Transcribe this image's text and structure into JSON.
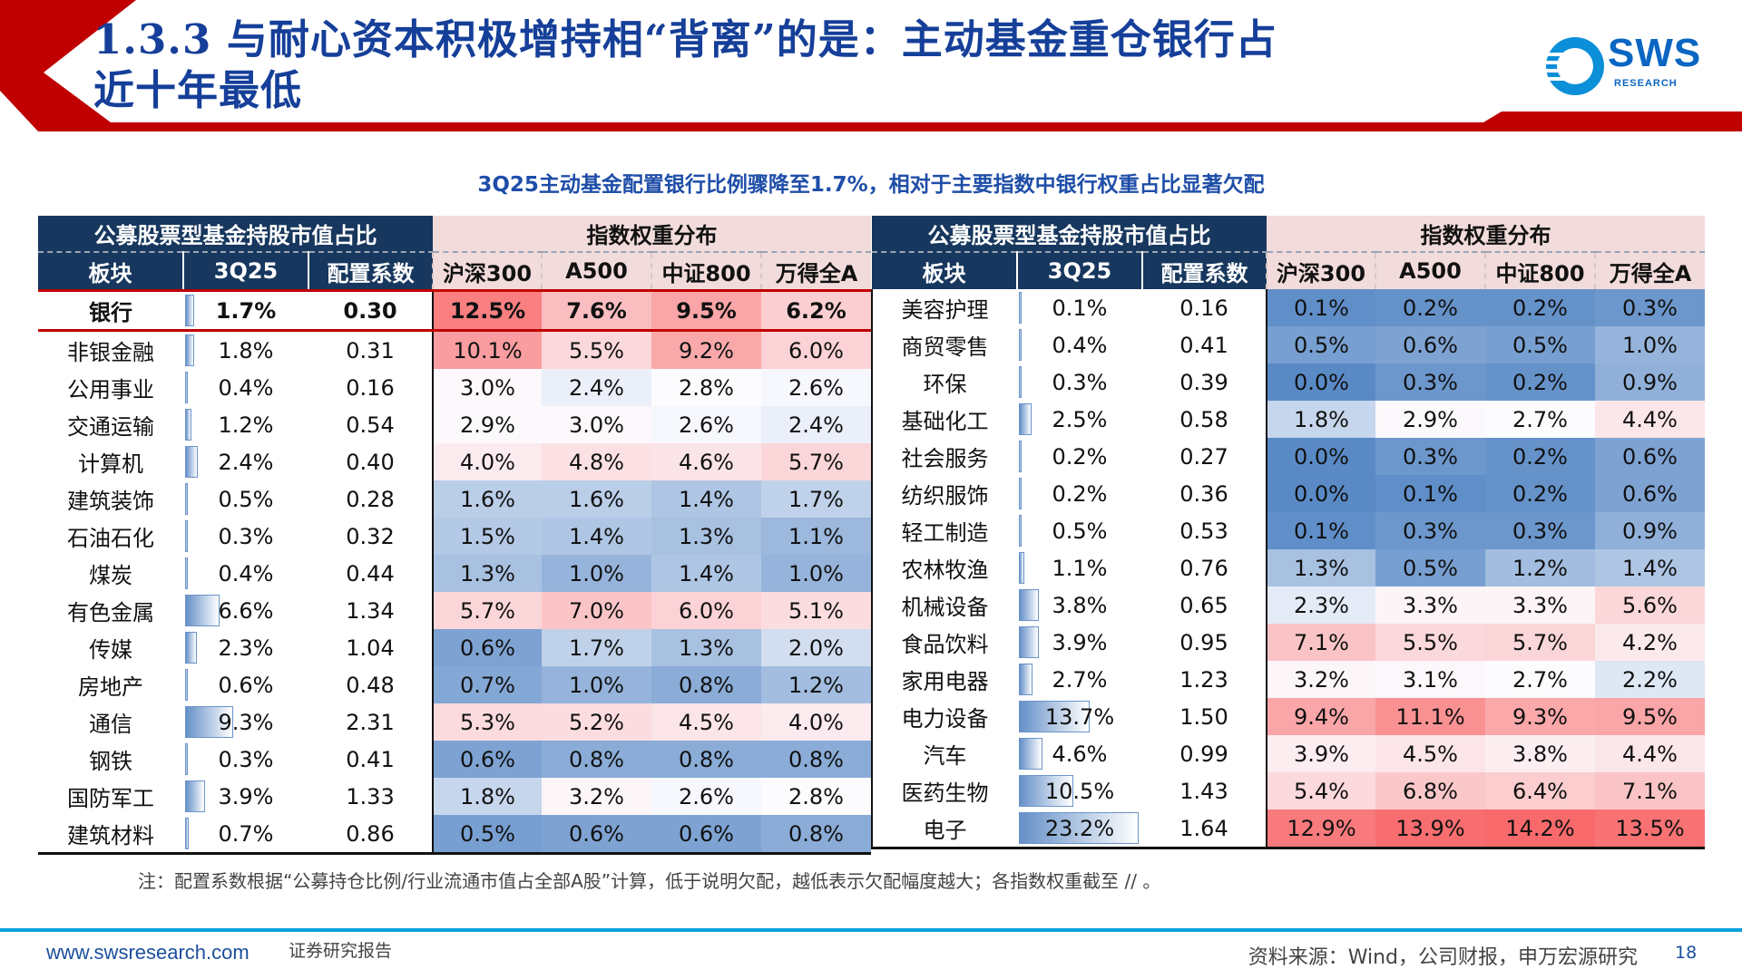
{
  "header": {
    "title_line1": "1.3.3 与耐心资本积极增持相“背离”的是：主动基金重仓银行占",
    "title_line2": "近十年最低",
    "logo_text": "SWS",
    "logo_sub": "RESEARCH"
  },
  "subtitle": "3Q25主动基金配置银行比例骤降至1.7%，相对于主要指数中银行权重占比显著欠配",
  "table": {
    "group_fund": "公募股票型基金持股市值占比",
    "group_index": "指数权重分布",
    "columns": [
      "板块",
      "3Q25",
      "配置系数",
      "沪深300",
      "A500",
      "中证800",
      "万得全A"
    ],
    "left_rows": [
      {
        "sector": "银行",
        "q": "1.7%",
        "coef": "0.30",
        "idx": [
          "12.5%",
          "7.6%",
          "9.5%",
          "6.2%"
        ]
      },
      {
        "sector": "非银金融",
        "q": "1.8%",
        "coef": "0.31",
        "idx": [
          "10.1%",
          "5.5%",
          "9.2%",
          "6.0%"
        ]
      },
      {
        "sector": "公用事业",
        "q": "0.4%",
        "coef": "0.16",
        "idx": [
          "3.0%",
          "2.4%",
          "2.8%",
          "2.6%"
        ]
      },
      {
        "sector": "交通运输",
        "q": "1.2%",
        "coef": "0.54",
        "idx": [
          "2.9%",
          "3.0%",
          "2.6%",
          "2.4%"
        ]
      },
      {
        "sector": "计算机",
        "q": "2.4%",
        "coef": "0.40",
        "idx": [
          "4.0%",
          "4.8%",
          "4.6%",
          "5.7%"
        ]
      },
      {
        "sector": "建筑装饰",
        "q": "0.5%",
        "coef": "0.28",
        "idx": [
          "1.6%",
          "1.6%",
          "1.4%",
          "1.7%"
        ]
      },
      {
        "sector": "石油石化",
        "q": "0.3%",
        "coef": "0.32",
        "idx": [
          "1.5%",
          "1.4%",
          "1.3%",
          "1.1%"
        ]
      },
      {
        "sector": "煤炭",
        "q": "0.4%",
        "coef": "0.44",
        "idx": [
          "1.3%",
          "1.0%",
          "1.4%",
          "1.0%"
        ]
      },
      {
        "sector": "有色金属",
        "q": "6.6%",
        "coef": "1.34",
        "idx": [
          "5.7%",
          "7.0%",
          "6.0%",
          "5.1%"
        ]
      },
      {
        "sector": "传媒",
        "q": "2.3%",
        "coef": "1.04",
        "idx": [
          "0.6%",
          "1.7%",
          "1.3%",
          "2.0%"
        ]
      },
      {
        "sector": "房地产",
        "q": "0.6%",
        "coef": "0.48",
        "idx": [
          "0.7%",
          "1.0%",
          "0.8%",
          "1.2%"
        ]
      },
      {
        "sector": "通信",
        "q": "9.3%",
        "coef": "2.31",
        "idx": [
          "5.3%",
          "5.2%",
          "4.5%",
          "4.0%"
        ]
      },
      {
        "sector": "钢铁",
        "q": "0.3%",
        "coef": "0.41",
        "idx": [
          "0.6%",
          "0.8%",
          "0.8%",
          "0.8%"
        ]
      },
      {
        "sector": "国防军工",
        "q": "3.9%",
        "coef": "1.33",
        "idx": [
          "1.8%",
          "3.2%",
          "2.6%",
          "2.8%"
        ]
      },
      {
        "sector": "建筑材料",
        "q": "0.7%",
        "coef": "0.86",
        "idx": [
          "0.5%",
          "0.6%",
          "0.6%",
          "0.8%"
        ]
      }
    ],
    "right_rows": [
      {
        "sector": "美容护理",
        "q": "0.1%",
        "coef": "0.16",
        "idx": [
          "0.1%",
          "0.2%",
          "0.2%",
          "0.3%"
        ]
      },
      {
        "sector": "商贸零售",
        "q": "0.4%",
        "coef": "0.41",
        "idx": [
          "0.5%",
          "0.6%",
          "0.5%",
          "1.0%"
        ]
      },
      {
        "sector": "环保",
        "q": "0.3%",
        "coef": "0.39",
        "idx": [
          "0.0%",
          "0.3%",
          "0.2%",
          "0.9%"
        ]
      },
      {
        "sector": "基础化工",
        "q": "2.5%",
        "coef": "0.58",
        "idx": [
          "1.8%",
          "2.9%",
          "2.7%",
          "4.4%"
        ]
      },
      {
        "sector": "社会服务",
        "q": "0.2%",
        "coef": "0.27",
        "idx": [
          "0.0%",
          "0.3%",
          "0.2%",
          "0.6%"
        ]
      },
      {
        "sector": "纺织服饰",
        "q": "0.2%",
        "coef": "0.36",
        "idx": [
          "0.0%",
          "0.1%",
          "0.2%",
          "0.6%"
        ]
      },
      {
        "sector": "轻工制造",
        "q": "0.5%",
        "coef": "0.53",
        "idx": [
          "0.1%",
          "0.3%",
          "0.3%",
          "0.9%"
        ]
      },
      {
        "sector": "农林牧渔",
        "q": "1.1%",
        "coef": "0.76",
        "idx": [
          "1.3%",
          "0.5%",
          "1.2%",
          "1.4%"
        ]
      },
      {
        "sector": "机械设备",
        "q": "3.8%",
        "coef": "0.65",
        "idx": [
          "2.3%",
          "3.3%",
          "3.3%",
          "5.6%"
        ]
      },
      {
        "sector": "食品饮料",
        "q": "3.9%",
        "coef": "0.95",
        "idx": [
          "7.1%",
          "5.5%",
          "5.7%",
          "4.2%"
        ]
      },
      {
        "sector": "家用电器",
        "q": "2.7%",
        "coef": "1.23",
        "idx": [
          "3.2%",
          "3.1%",
          "2.7%",
          "2.2%"
        ]
      },
      {
        "sector": "电力设备",
        "q": "13.7%",
        "coef": "1.50",
        "idx": [
          "9.4%",
          "11.1%",
          "9.3%",
          "9.5%"
        ]
      },
      {
        "sector": "汽车",
        "q": "4.6%",
        "coef": "0.99",
        "idx": [
          "3.9%",
          "4.5%",
          "3.8%",
          "4.4%"
        ]
      },
      {
        "sector": "医药生物",
        "q": "10.5%",
        "coef": "1.43",
        "idx": [
          "5.4%",
          "6.8%",
          "6.4%",
          "7.1%"
        ]
      },
      {
        "sector": "电子",
        "q": "23.2%",
        "coef": "1.64",
        "idx": [
          "12.9%",
          "13.9%",
          "14.2%",
          "13.5%"
        ]
      }
    ],
    "colors": {
      "low": "#5a8ac6",
      "mid": "#fcfcff",
      "high": "#f8696b",
      "header_dark": "#17375e",
      "header_light": "#f2dcdb",
      "highlight_line": "#c00000"
    }
  },
  "note": "注：配置系数根据“公募持仓比例/行业流通市值占全部A股”计算，低于说明欠配，越低表示欠配幅度越大；各指数权重截至 //          。",
  "footer": {
    "url": "www.swsresearch.com",
    "report_type": "证券研究报告",
    "source": "资料来源：Wind，公司财报，申万宏源研究",
    "page": "18"
  }
}
